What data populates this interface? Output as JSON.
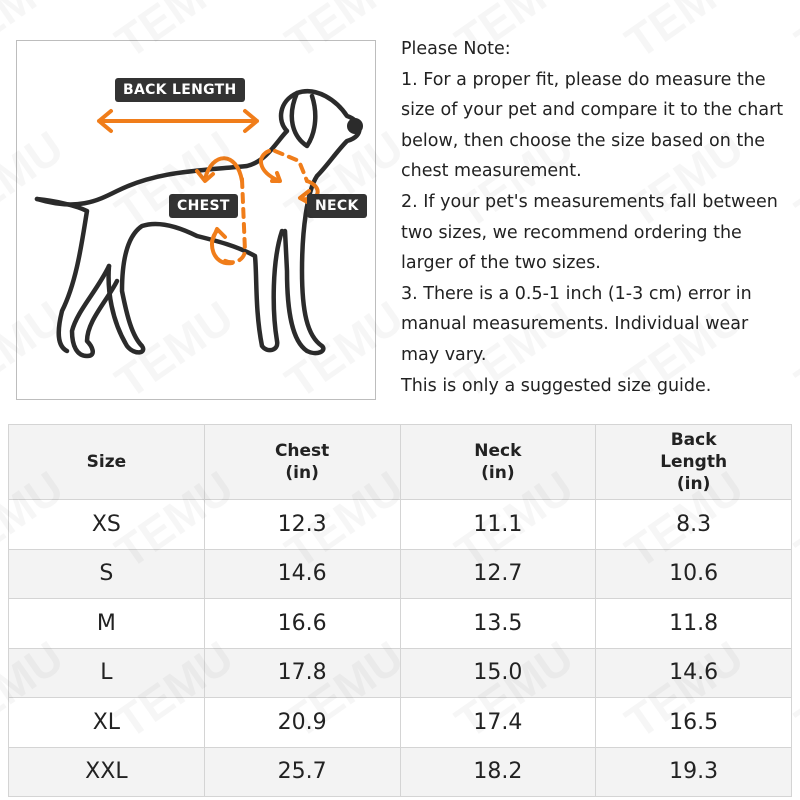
{
  "figure": {
    "labels": {
      "back_length": "BACK LENGTH",
      "chest": "CHEST",
      "neck": "NECK"
    },
    "accent_color": "#f07d1a",
    "outline_color": "#2b2b2b"
  },
  "notes": {
    "lines": [
      "Please Note:",
      "1. For a proper fit, please do measure the",
      "size of your pet and compare it to the chart",
      "below, then choose the size based on the",
      "chest measurement.",
      "2. If your pet's measurements fall between",
      "two sizes, we recommend ordering the",
      "larger of the two sizes.",
      "3. There is a 0.5-1 inch (1-3 cm) error in",
      "manual measurements. Individual wear",
      "may vary.",
      "This is only a suggested size guide."
    ]
  },
  "table": {
    "headers": [
      [
        "Size"
      ],
      [
        "Chest",
        "(in)"
      ],
      [
        "Neck",
        "(in)"
      ],
      [
        "Back",
        "Length",
        "(in)"
      ]
    ],
    "rows": [
      [
        "XS",
        "12.3",
        "11.1",
        "8.3"
      ],
      [
        "S",
        "14.6",
        "12.7",
        "10.6"
      ],
      [
        "M",
        "16.6",
        "13.5",
        "11.8"
      ],
      [
        "L",
        "17.8",
        "15.0",
        "14.6"
      ],
      [
        "XL",
        "20.9",
        "17.4",
        "16.5"
      ],
      [
        "XXL",
        "25.7",
        "18.2",
        "19.3"
      ]
    ]
  },
  "watermark": "TEMU"
}
